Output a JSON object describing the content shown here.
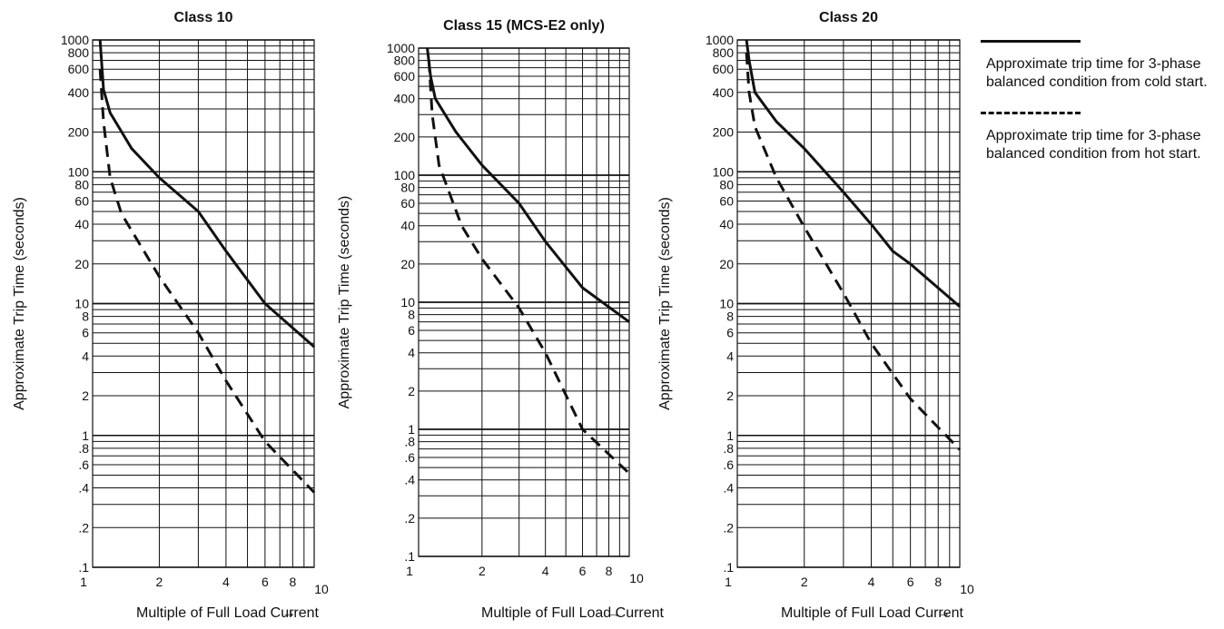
{
  "chart_data": [
    {
      "type": "line",
      "title": "Class 10",
      "xlabel": "Multiple of Full Load Current",
      "ylabel": "Approximate Trip Time (seconds)",
      "xscale": "log",
      "yscale": "log",
      "xlim": [
        1,
        10
      ],
      "ylim": [
        0.1,
        1000
      ],
      "x_ticks": [
        1,
        2,
        4,
        6,
        8,
        10
      ],
      "x_tick_labels": [
        "1",
        "2",
        "4",
        "6",
        "8",
        "10"
      ],
      "y_ticks": [
        0.1,
        0.2,
        0.4,
        0.6,
        0.8,
        1,
        2,
        4,
        6,
        8,
        10,
        20,
        40,
        60,
        80,
        100,
        200,
        400,
        600,
        800,
        1000
      ],
      "y_tick_labels": [
        ".1",
        ".2",
        ".4",
        ".6",
        ".8",
        "1",
        "2",
        "4",
        "6",
        "8",
        "10",
        "20",
        "40",
        "60",
        "80",
        "100",
        "200",
        "400",
        "600",
        "800",
        "1000"
      ],
      "grid": true,
      "series": [
        {
          "style": "solid",
          "x": [
            1.08,
            1.12,
            1.2,
            1.5,
            2,
            3,
            4,
            6,
            10
          ],
          "y": [
            1000,
            420,
            280,
            150,
            90,
            50,
            25,
            10,
            4.7
          ]
        },
        {
          "style": "dashed",
          "x": [
            1.08,
            1.12,
            1.2,
            1.35,
            2,
            3,
            4,
            6,
            10
          ],
          "y": [
            600,
            240,
            90,
            48,
            16,
            6,
            2.6,
            0.9,
            0.37
          ]
        }
      ]
    },
    {
      "type": "line",
      "title": "Class 15 (MCS-E2 only)",
      "xlabel": "Multiple of Full Load Current",
      "ylabel": "Approximate Trip Time (seconds)",
      "xscale": "log",
      "yscale": "log",
      "xlim": [
        1,
        10
      ],
      "ylim": [
        0.1,
        1000
      ],
      "x_ticks": [
        1,
        2,
        4,
        6,
        8,
        10
      ],
      "x_tick_labels": [
        "1",
        "2",
        "4",
        "6",
        "8",
        "10"
      ],
      "y_ticks": [
        0.1,
        0.2,
        0.4,
        0.6,
        0.8,
        1,
        2,
        4,
        6,
        8,
        10,
        20,
        40,
        60,
        80,
        100,
        200,
        400,
        600,
        800,
        1000
      ],
      "y_tick_labels": [
        ".1",
        ".2",
        ".4",
        ".6",
        ".8",
        "1",
        "2",
        "4",
        "6",
        "8",
        "10",
        "20",
        "40",
        "60",
        "80",
        "100",
        "200",
        "400",
        "600",
        "800",
        "1000"
      ],
      "grid": true,
      "series": [
        {
          "style": "solid",
          "x": [
            1.1,
            1.14,
            1.2,
            1.5,
            2,
            3,
            4,
            6,
            10
          ],
          "y": [
            1000,
            600,
            400,
            220,
            120,
            60,
            30,
            13,
            7
          ]
        },
        {
          "style": "dashed",
          "x": [
            1.12,
            1.16,
            1.25,
            1.6,
            2,
            3,
            4,
            6,
            10
          ],
          "y": [
            800,
            300,
            120,
            40,
            22,
            9,
            4,
            1,
            0.45
          ]
        }
      ]
    },
    {
      "type": "line",
      "title": "Class 20",
      "xlabel": "Multiple of Full Load Current",
      "ylabel": "Approximate Trip Time (seconds)",
      "xscale": "log",
      "yscale": "log",
      "xlim": [
        1,
        10
      ],
      "ylim": [
        0.1,
        1000
      ],
      "x_ticks": [
        1,
        2,
        4,
        6,
        8,
        10
      ],
      "x_tick_labels": [
        "1",
        "2",
        "4",
        "6",
        "8",
        "10"
      ],
      "y_ticks": [
        0.1,
        0.2,
        0.4,
        0.6,
        0.8,
        1,
        2,
        4,
        6,
        8,
        10,
        20,
        40,
        60,
        80,
        100,
        200,
        400,
        600,
        800,
        1000
      ],
      "y_tick_labels": [
        ".1",
        ".2",
        ".4",
        ".6",
        ".8",
        "1",
        "2",
        "4",
        "6",
        "8",
        "10",
        "20",
        "40",
        "60",
        "80",
        "100",
        "200",
        "400",
        "600",
        "800",
        "1000"
      ],
      "grid": true,
      "series": [
        {
          "style": "solid",
          "x": [
            1.1,
            1.13,
            1.2,
            1.5,
            2,
            3,
            4,
            5,
            6,
            10
          ],
          "y": [
            1000,
            700,
            400,
            240,
            150,
            70,
            40,
            25,
            20,
            9.5
          ]
        },
        {
          "style": "dashed",
          "x": [
            1.1,
            1.13,
            1.2,
            1.5,
            2,
            3,
            4,
            6,
            10
          ],
          "y": [
            800,
            400,
            220,
            90,
            38,
            12,
            5,
            1.9,
            0.78
          ]
        }
      ]
    }
  ],
  "legend": {
    "items": [
      {
        "style": "solid",
        "text": "Approximate trip time for 3-phase balanced condition from cold start."
      },
      {
        "style": "dashed",
        "text": "Approximate trip time for 3-phase balanced condition from hot start."
      }
    ]
  },
  "arrow_glyph": "→"
}
